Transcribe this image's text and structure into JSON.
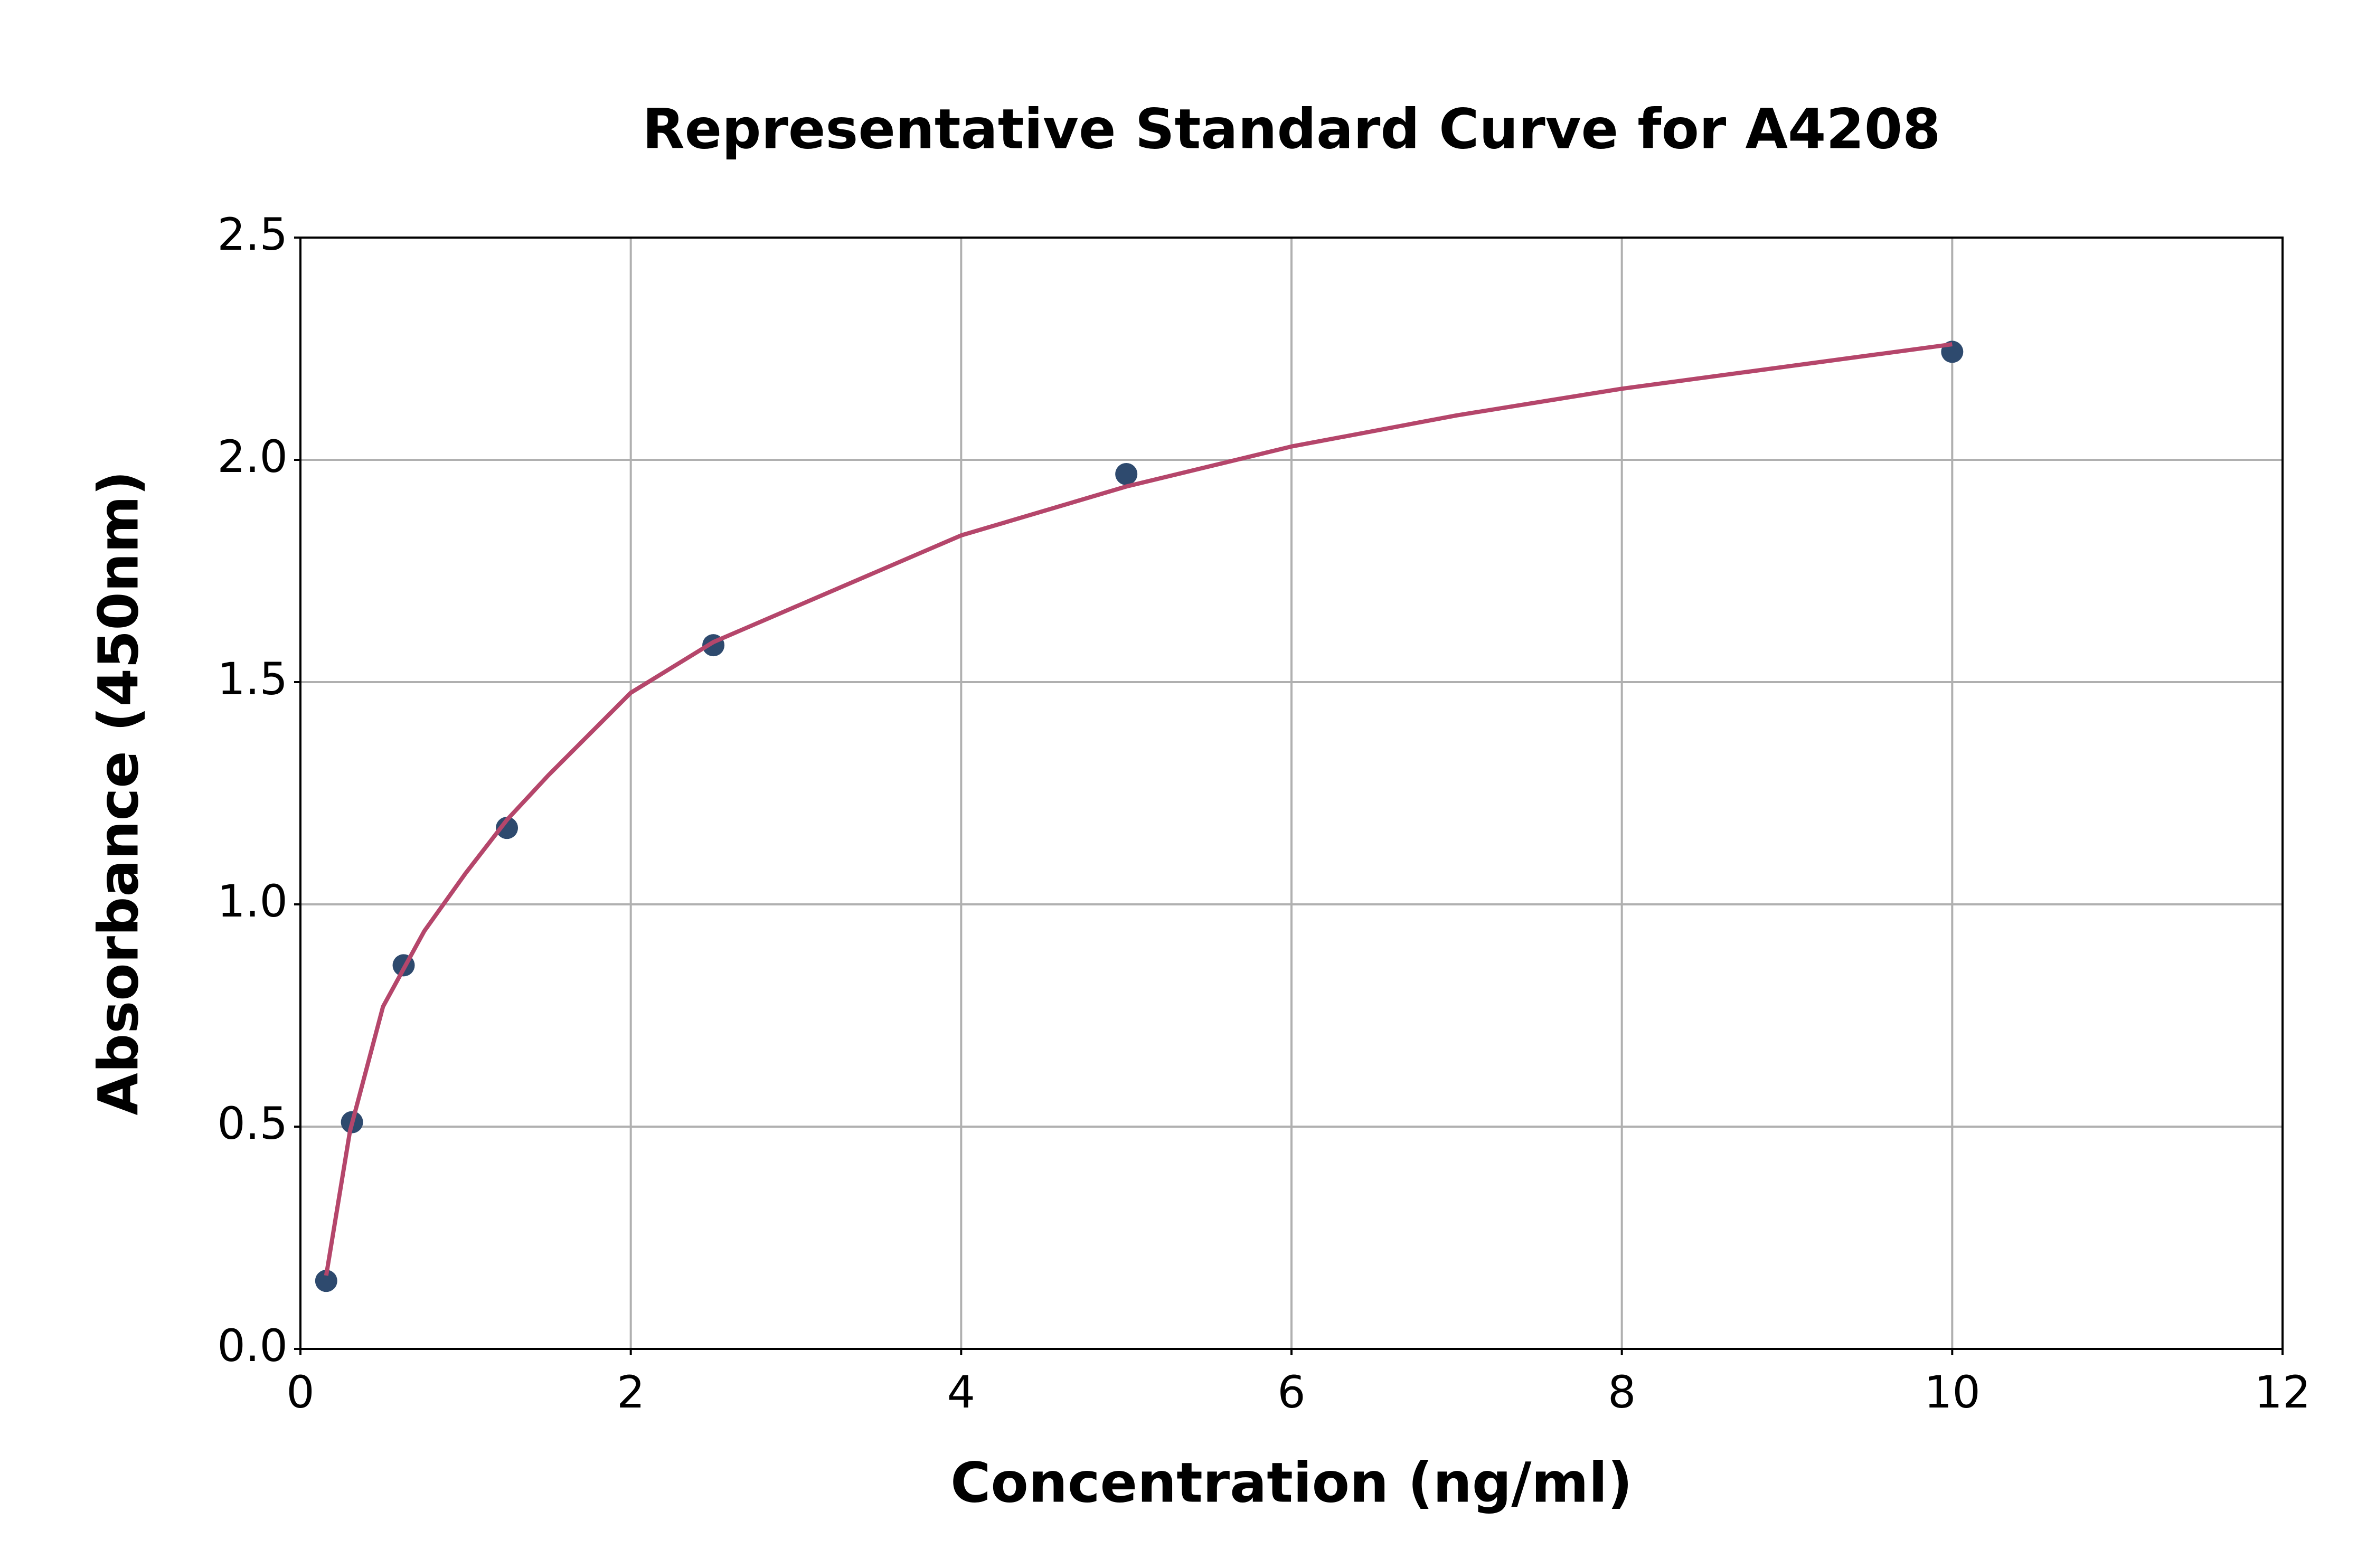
{
  "chart_data": {
    "type": "scatter",
    "title": "Representative Standard Curve for A4208",
    "x_label": "Concentration (ng/ml)",
    "y_label": "Absorbance (450nm)",
    "series": [
      {
        "mode": "markers",
        "color": "#2e4a6e",
        "x": [
          0.156,
          0.312,
          0.625,
          1.25,
          2.5,
          5,
          10
        ],
        "values": [
          0.153,
          0.51,
          0.863,
          1.172,
          1.583,
          1.968,
          2.243
        ]
      },
      {
        "mode": "line",
        "color": "#b5466b",
        "x": [
          0.156,
          0.3,
          0.5,
          0.75,
          1,
          1.25,
          1.5,
          2,
          2.5,
          3,
          4,
          5,
          6,
          7,
          8,
          9,
          10
        ],
        "values": [
          0.165,
          0.49,
          0.77,
          0.94,
          1.07,
          1.19,
          1.29,
          1.476,
          1.59,
          1.67,
          1.83,
          1.94,
          2.03,
          2.1,
          2.16,
          2.21,
          2.26
        ]
      }
    ],
    "xlim": [
      0,
      12
    ],
    "xticks": [
      0,
      2,
      4,
      6,
      8,
      10,
      12
    ],
    "ylim": [
      0,
      2.5
    ],
    "yticks": [
      {
        "value": 0,
        "label": "0.0"
      },
      0.5,
      {
        "value": 1,
        "label": "1.0"
      },
      1.5,
      {
        "value": 2,
        "label": "2.0"
      },
      2.5
    ],
    "grid": true
  }
}
